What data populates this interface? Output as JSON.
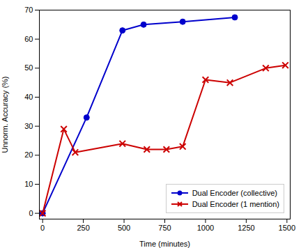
{
  "chart_data": {
    "type": "line",
    "xlabel": "Time (minutes)",
    "ylabel": "Unnorm. Accuracy (%)",
    "series": [
      {
        "name": "Dual Encoder (collective)",
        "color": "#0000cc",
        "marker": "circle",
        "x": [
          0,
          270,
          490,
          620,
          860,
          1180
        ],
        "values": [
          0,
          33,
          63,
          65,
          66,
          67.5
        ]
      },
      {
        "name": "Dual Encoder (1 mention)",
        "color": "#cc0000",
        "marker": "x",
        "x": [
          0,
          130,
          200,
          490,
          640,
          760,
          860,
          1000,
          1150,
          1370,
          1490
        ],
        "values": [
          0,
          29,
          21,
          24,
          22,
          22,
          23,
          46,
          45,
          50,
          51
        ]
      }
    ],
    "xlim": [
      -20,
      1520
    ],
    "ylim": [
      -2,
      70
    ],
    "xticks": [
      0,
      250,
      500,
      750,
      1000,
      1250,
      1500
    ],
    "yticks": [
      0,
      10,
      20,
      30,
      40,
      50,
      60,
      70
    ],
    "grid": false,
    "legend": "lower right"
  }
}
